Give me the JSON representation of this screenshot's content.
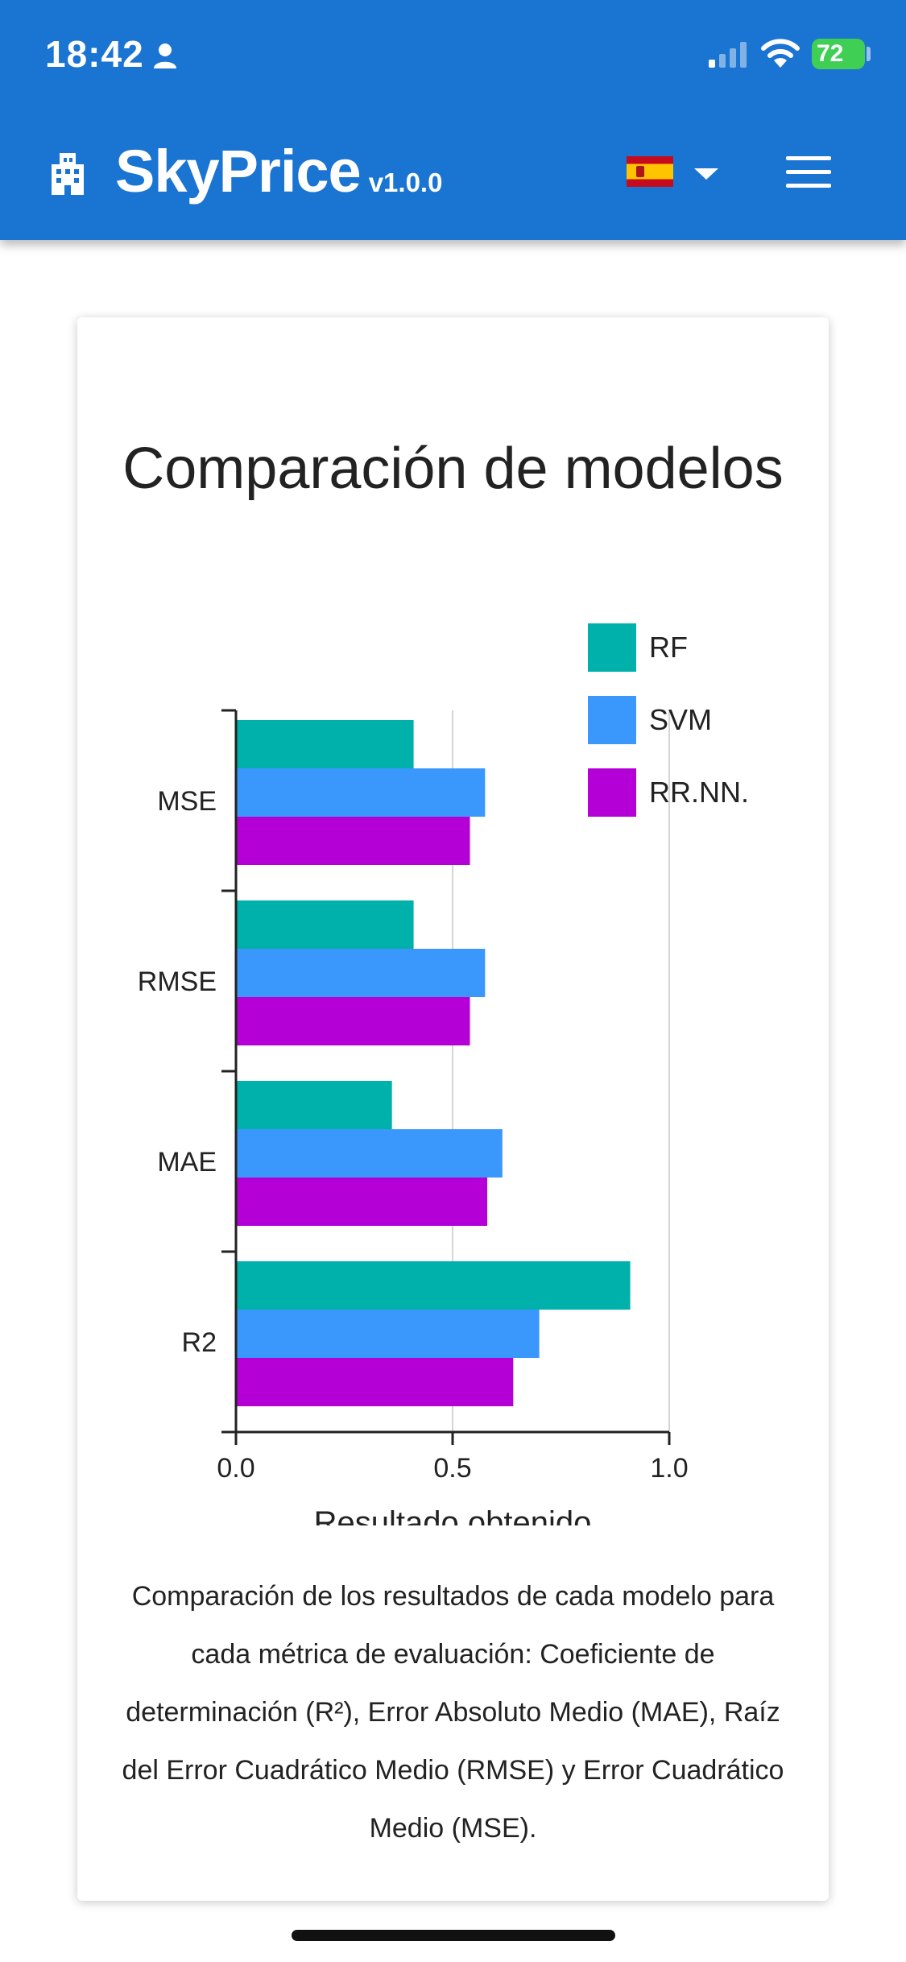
{
  "status_bar": {
    "time": "18:42",
    "battery": "72"
  },
  "header": {
    "brand": "SkyPrice",
    "version": "v1.0.0",
    "language": "Español"
  },
  "colors": {
    "header_bg": "#1a74d2",
    "rf": "#00b0aa",
    "svm": "#3a98fd",
    "rrnn": "#b400d7"
  },
  "icons": [
    "person-icon",
    "signal-icon",
    "wifi-icon",
    "battery-icon",
    "building-icon",
    "spain-flag-icon",
    "chevron-down-icon",
    "hamburger-menu-icon"
  ],
  "card": {
    "title": "Comparación de modelos",
    "caption": "Comparación de los resultados de cada modelo para cada métrica de evaluación: Coeficiente de determinación (R²), Error Absoluto Medio (MAE), Raíz del Error Cuadrático Medio (RMSE) y Error Cuadrático Medio (MSE)."
  },
  "chart_data": {
    "type": "bar",
    "orientation": "horizontal",
    "title": "Comparación de modelos",
    "xlabel": "Resultado obtenido",
    "ylabel": "",
    "xlim": [
      0,
      1
    ],
    "xticks": [
      "0.0",
      "0.5",
      "1.0"
    ],
    "grid": "vertical",
    "legend": "top-right",
    "categories": [
      "MSE",
      "RMSE",
      "MAE",
      "R2"
    ],
    "series": [
      {
        "name": "RF",
        "color": "#00b0aa",
        "values": [
          0.41,
          0.41,
          0.36,
          0.91
        ]
      },
      {
        "name": "SVM",
        "color": "#3a98fd",
        "values": [
          0.575,
          0.575,
          0.615,
          0.7
        ]
      },
      {
        "name": "RR.NN.",
        "color": "#b400d7",
        "values": [
          0.54,
          0.54,
          0.58,
          0.64
        ]
      }
    ]
  }
}
